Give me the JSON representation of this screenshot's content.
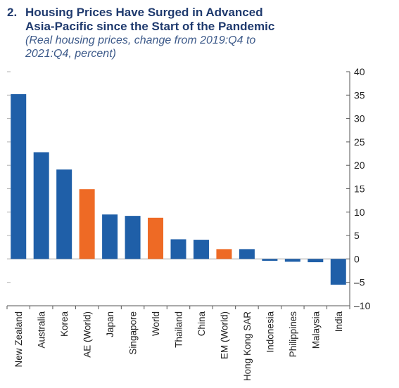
{
  "header": {
    "number": "2.",
    "title_line1": "Housing Prices Have Surged in Advanced",
    "title_line2": "Asia-Pacific since the Start of the Pandemic",
    "subtitle_line1": "(Real housing prices, change from 2019:Q4 to",
    "subtitle_line2": "2021:Q4, percent)"
  },
  "colors": {
    "regular": "#1f5fa8",
    "aggregate": "#ee6a25",
    "axis": "#555555"
  },
  "chart_data": {
    "type": "bar",
    "categories": [
      "New Zealand",
      "Australia",
      "Korea",
      "AE (World)",
      "Japan",
      "Singapore",
      "World",
      "Thailand",
      "China",
      "EM (World)",
      "Hong Kong SAR",
      "Indonesia",
      "Philippines",
      "Malaysia",
      "India"
    ],
    "values": [
      35.2,
      22.8,
      19.1,
      14.9,
      9.5,
      9.2,
      8.8,
      4.2,
      4.1,
      2.1,
      2.1,
      -0.4,
      -0.6,
      -0.7,
      -5.5
    ],
    "highlight": [
      "AE (World)",
      "World",
      "EM (World)"
    ],
    "ylim": [
      -10,
      40
    ],
    "yticks": [
      -10,
      -5,
      0,
      5,
      10,
      15,
      20,
      25,
      30,
      35,
      40
    ],
    "ytick_labels": [
      "–10",
      "–5",
      "0",
      "5",
      "10",
      "15",
      "20",
      "25",
      "30",
      "35",
      "40"
    ],
    "axis_side": "right",
    "grid": false
  }
}
